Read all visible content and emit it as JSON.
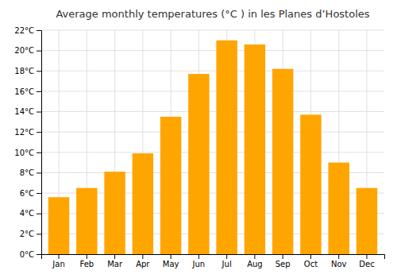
{
  "chart_data": {
    "type": "bar",
    "title": "Average monthly temperatures (°C ) in les Planes d’Hostoles",
    "categories": [
      "Jan",
      "Feb",
      "Mar",
      "Apr",
      "May",
      "Jun",
      "Jul",
      "Aug",
      "Sep",
      "Oct",
      "Nov",
      "Dec"
    ],
    "values": [
      5.6,
      6.5,
      8.1,
      9.9,
      13.5,
      17.7,
      21.0,
      20.6,
      18.2,
      13.7,
      9.0,
      6.5
    ],
    "color": "#FFA500",
    "ylim": [
      0,
      22
    ],
    "yticks": [
      {
        "value": 0,
        "label": "0°C"
      },
      {
        "value": 2,
        "label": "2°C"
      },
      {
        "value": 4,
        "label": "4°C"
      },
      {
        "value": 6,
        "label": "6°C"
      },
      {
        "value": 8,
        "label": "8°C"
      },
      {
        "value": 10,
        "label": "10°C"
      },
      {
        "value": 12,
        "label": "12°C"
      },
      {
        "value": 14,
        "label": "14°C"
      },
      {
        "value": 16,
        "label": "16°C"
      },
      {
        "value": 18,
        "label": "18°C"
      },
      {
        "value": 20,
        "label": "20°C"
      },
      {
        "value": 22,
        "label": "22°C"
      }
    ],
    "grid": true
  }
}
